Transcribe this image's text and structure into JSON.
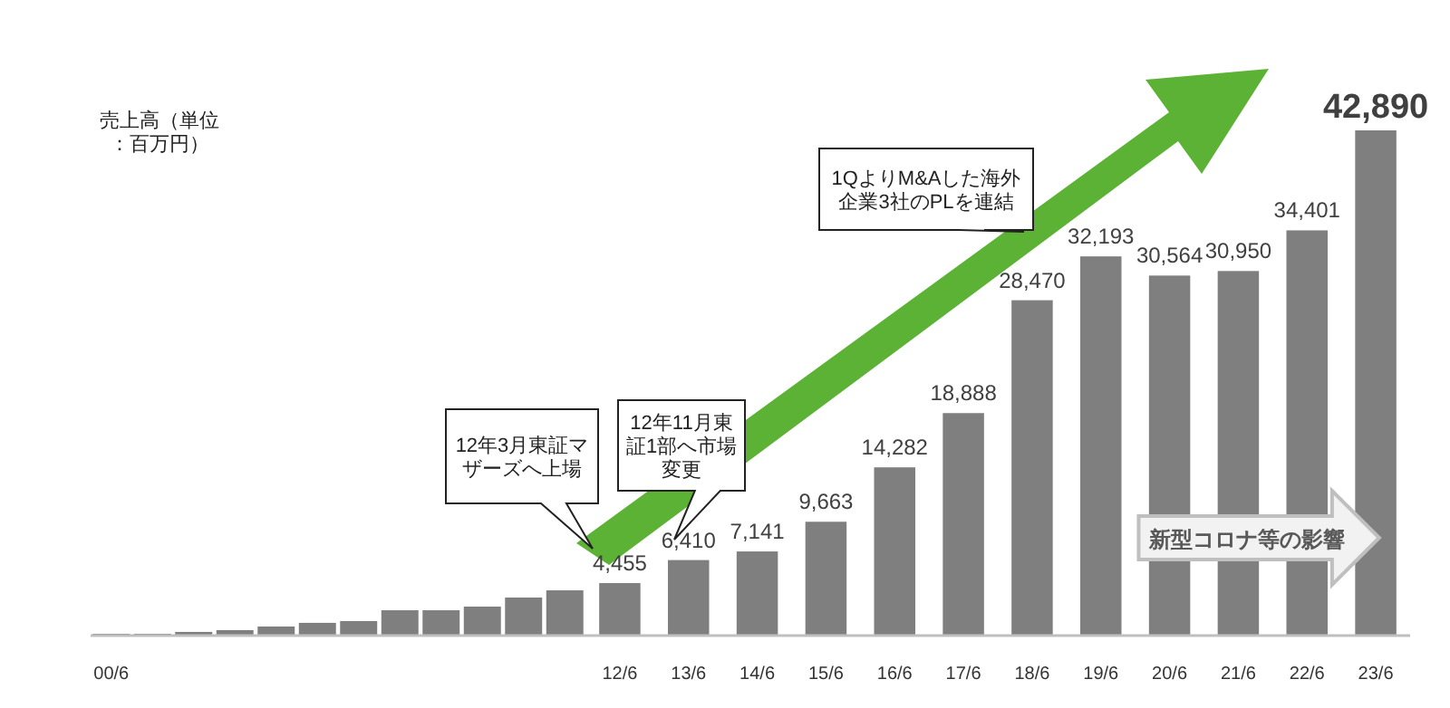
{
  "chart_data": {
    "type": "bar",
    "ylabel": "売上高（単位：百万円）",
    "categories": [
      "00/6",
      null,
      null,
      null,
      null,
      null,
      null,
      null,
      null,
      null,
      null,
      null,
      "12/6",
      "13/6",
      "14/6",
      "15/6",
      "16/6",
      "17/6",
      "18/6",
      "19/6",
      "20/6",
      "21/6",
      "22/6",
      "23/6"
    ],
    "values": [
      150,
      150,
      310,
      460,
      770,
      1080,
      1230,
      2150,
      2150,
      2460,
      3230,
      3840,
      4455,
      6410,
      7141,
      9663,
      14282,
      18888,
      28470,
      32193,
      30564,
      30950,
      34401,
      42890
    ],
    "value_labels": [
      null,
      null,
      null,
      null,
      null,
      null,
      null,
      null,
      null,
      null,
      null,
      null,
      "4,455",
      "6,410",
      "7,141",
      "9,663",
      "14,282",
      "18,888",
      "28,470",
      "32,193",
      "30,564",
      "30,950",
      "34,401",
      "42,890"
    ],
    "color": "#7f7f7f",
    "grid": false,
    "annotations": [
      "12年3月東証マザーズへ上場",
      "12年11月東証1部へ市場変更",
      "1QよりM&Aした海外企業3社のPLを連結",
      "新型コロナ等の影響"
    ]
  }
}
